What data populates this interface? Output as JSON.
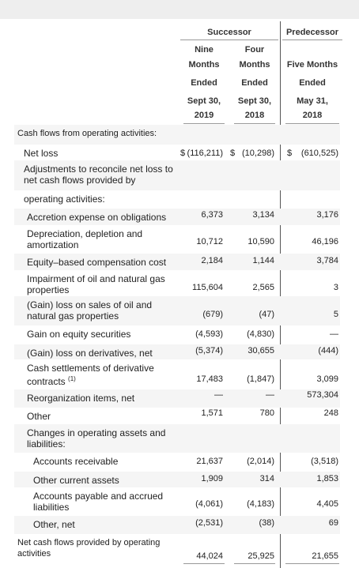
{
  "header": {
    "successor": "Successor",
    "predecessor": "Predecessor",
    "columns": [
      [
        "Nine",
        "Months",
        "Ended",
        "Sept 30,",
        "2019"
      ],
      [
        "Four",
        "Months",
        "Ended",
        "Sept 30,",
        "2018"
      ],
      [
        "Five Months",
        "Ended",
        "May 31,",
        "2018"
      ]
    ]
  },
  "currency": "$",
  "rows": [
    {
      "label": [
        "Cash flows from operating activities:"
      ]
    },
    {
      "label": [
        "Net loss"
      ],
      "values": [
        "(116,211)",
        "(10,298)",
        "(610,525)"
      ]
    },
    {
      "label": [
        "Adjustments to reconcile net loss to",
        "net cash flows provided by"
      ]
    },
    {
      "label": [
        "operating activities:"
      ]
    },
    {
      "label": [
        "Accretion expense on obligations"
      ],
      "values": [
        "6,373",
        "3,134",
        "3,176"
      ]
    },
    {
      "label": [
        "Depreciation, depletion and",
        "amortization"
      ],
      "values": [
        "10,712",
        "10,590",
        "46,196"
      ]
    },
    {
      "label": [
        "Equity–based compensation cost"
      ],
      "values": [
        "2,184",
        "1,144",
        "3,784"
      ]
    },
    {
      "label": [
        "Impairment of oil and natural gas",
        "properties"
      ],
      "values": [
        "115,604",
        "2,565",
        "3"
      ]
    },
    {
      "label": [
        "(Gain) loss on sales of oil and",
        "natural gas properties"
      ],
      "values": [
        "(679)",
        "(47)",
        "5"
      ]
    },
    {
      "label": [
        "Gain on equity securities"
      ],
      "values": [
        "(4,593)",
        "(4,830)",
        "—"
      ]
    },
    {
      "label": [
        "(Gain) loss on derivatives, net"
      ],
      "values": [
        "(5,374)",
        "30,655",
        "(444)"
      ]
    },
    {
      "label": [
        "Cash settlements of derivative",
        "contracts"
      ],
      "footnote": "(1)",
      "values": [
        "17,483",
        "(1,847)",
        "3,099"
      ]
    },
    {
      "label": [
        "Reorganization items, net"
      ],
      "values": [
        "—",
        "—",
        "573,304"
      ]
    },
    {
      "label": [
        "Other"
      ],
      "values": [
        "1,571",
        "780",
        "248"
      ]
    },
    {
      "label": [
        "Changes in operating assets and",
        "liabilities:"
      ]
    },
    {
      "label": [
        "Accounts receivable"
      ],
      "values": [
        "21,637",
        "(2,014)",
        "(3,518)"
      ]
    },
    {
      "label": [
        "Other current assets"
      ],
      "values": [
        "1,909",
        "314",
        "1,853"
      ]
    },
    {
      "label": [
        "Accounts payable and accrued",
        "liabilities"
      ],
      "values": [
        "(4,061)",
        "(4,183)",
        "4,405"
      ]
    },
    {
      "label": [
        "Other, net"
      ],
      "values": [
        "(2,531)",
        "(38)",
        "69"
      ]
    },
    {
      "label": [
        "Net cash flows provided by operating",
        "activities"
      ],
      "values": [
        "44,024",
        "25,925",
        "21,655"
      ]
    }
  ]
}
